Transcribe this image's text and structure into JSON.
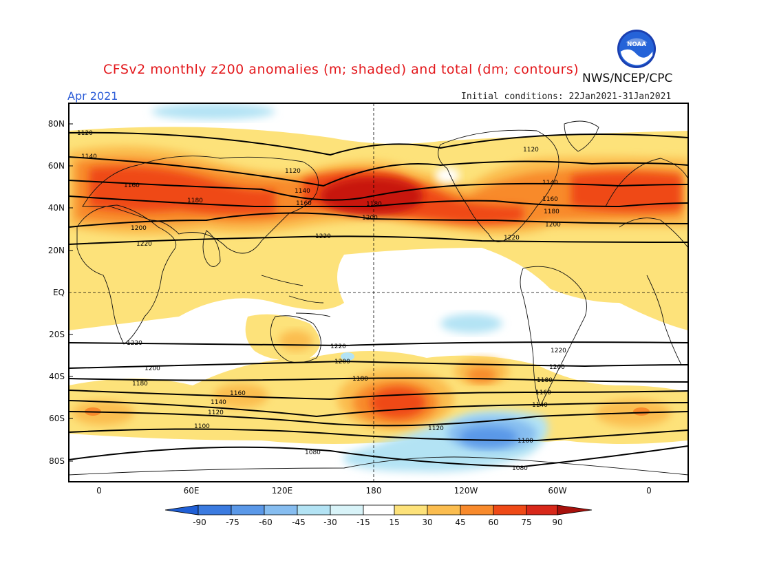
{
  "header": {
    "title": "CFSv2 monthly z200 anomalies (m; shaded) and total (dm; contours)",
    "organization": "NWS/NCEP/CPC",
    "valid_month": "Apr 2021",
    "initial_conditions": "Initial conditions: 22Jan2021-31Jan2021",
    "logo_text": "NOAA"
  },
  "map": {
    "lat_labels": [
      "80N",
      "60N",
      "40N",
      "20N",
      "EQ",
      "20S",
      "40S",
      "60S",
      "80S"
    ],
    "lon_labels": [
      "0",
      "60E",
      "120E",
      "180",
      "120W",
      "60W",
      "0"
    ],
    "contour_labels": [
      "1080",
      "1100",
      "1120",
      "1140",
      "1160",
      "1180",
      "1200",
      "1220"
    ]
  },
  "colorbar": {
    "tick_labels": [
      "-90",
      "-75",
      "-60",
      "-45",
      "-30",
      "-15",
      "15",
      "30",
      "45",
      "60",
      "75",
      "90"
    ],
    "colors": [
      "#1f5fd6",
      "#3b7be0",
      "#5a98e8",
      "#86bdf0",
      "#b3e3f4",
      "#ffffff",
      "#fde27a",
      "#fbbd4f",
      "#f88a2c",
      "#ef4a17",
      "#c8140e"
    ]
  }
}
